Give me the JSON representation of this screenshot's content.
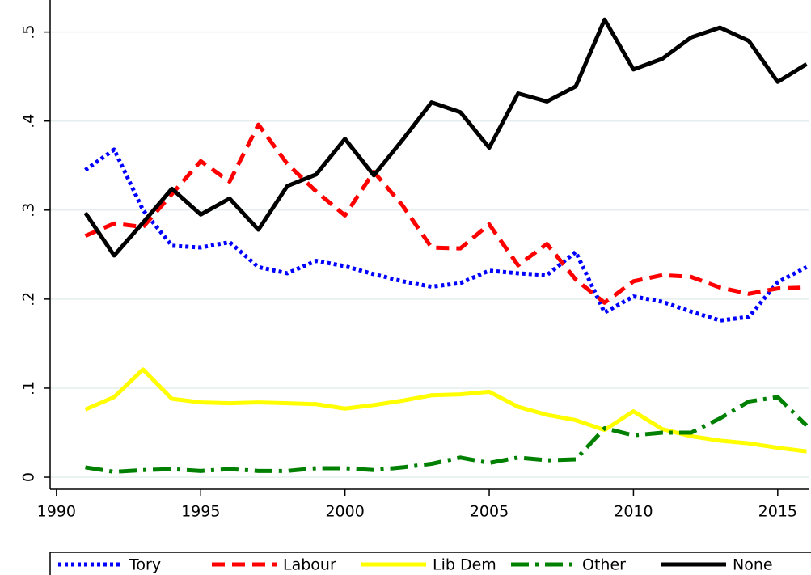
{
  "chart_data": {
    "type": "line",
    "x": [
      1991,
      1992,
      1993,
      1994,
      1995,
      1996,
      1997,
      1998,
      1999,
      2000,
      2001,
      2002,
      2003,
      2004,
      2005,
      2006,
      2007,
      2008,
      2009,
      2010,
      2011,
      2012,
      2013,
      2014,
      2015,
      2016
    ],
    "series": [
      {
        "name": "Tory",
        "color": "#0000ff",
        "style": "dot",
        "values": [
          0.345,
          0.368,
          0.3,
          0.26,
          0.258,
          0.264,
          0.236,
          0.229,
          0.243,
          0.237,
          0.228,
          0.22,
          0.214,
          0.218,
          0.232,
          0.229,
          0.227,
          0.253,
          0.185,
          0.203,
          0.197,
          0.186,
          0.176,
          0.18,
          0.219,
          0.236
        ]
      },
      {
        "name": "Labour",
        "color": "#ff0000",
        "style": "dash",
        "values": [
          0.271,
          0.285,
          0.281,
          0.318,
          0.355,
          0.332,
          0.396,
          0.352,
          0.321,
          0.294,
          0.343,
          0.305,
          0.258,
          0.257,
          0.284,
          0.238,
          0.262,
          0.222,
          0.196,
          0.22,
          0.227,
          0.225,
          0.213,
          0.206,
          0.212,
          0.213
        ]
      },
      {
        "name": "Lib Dem",
        "color": "#ffff00",
        "style": "solid",
        "values": [
          0.076,
          0.09,
          0.121,
          0.088,
          0.084,
          0.083,
          0.084,
          0.083,
          0.082,
          0.077,
          0.081,
          0.086,
          0.092,
          0.093,
          0.096,
          0.079,
          0.07,
          0.064,
          0.053,
          0.074,
          0.054,
          0.046,
          0.041,
          0.038,
          0.033,
          0.029
        ]
      },
      {
        "name": "Other",
        "color": "#008000",
        "style": "dashdot",
        "values": [
          0.011,
          0.006,
          0.008,
          0.009,
          0.007,
          0.009,
          0.007,
          0.007,
          0.01,
          0.01,
          0.008,
          0.011,
          0.015,
          0.022,
          0.016,
          0.022,
          0.019,
          0.02,
          0.055,
          0.047,
          0.05,
          0.05,
          0.066,
          0.085,
          0.09,
          0.058
        ]
      },
      {
        "name": "None",
        "color": "#000000",
        "style": "solid",
        "values": [
          0.297,
          0.249,
          0.286,
          0.324,
          0.295,
          0.313,
          0.278,
          0.327,
          0.34,
          0.38,
          0.339,
          0.379,
          0.421,
          0.41,
          0.37,
          0.431,
          0.422,
          0.439,
          0.514,
          0.458,
          0.47,
          0.494,
          0.505,
          0.49,
          0.444,
          0.464
        ]
      }
    ],
    "xlim": [
      1989.78,
      2016.07
    ],
    "xticks": [
      1990,
      1995,
      2000,
      2005,
      2010,
      2015
    ],
    "ylim": [
      -0.0136,
      0.536
    ],
    "yticks": [
      0,
      {
        "value": 0.1,
        "label": ".1"
      },
      {
        "value": 0.2,
        "label": ".2"
      },
      {
        "value": 0.3,
        "label": ".3"
      },
      {
        "value": 0.4,
        "label": ".4"
      },
      {
        "value": 0.5,
        "label": ".5"
      }
    ],
    "grid": true,
    "legend": "bottom"
  }
}
